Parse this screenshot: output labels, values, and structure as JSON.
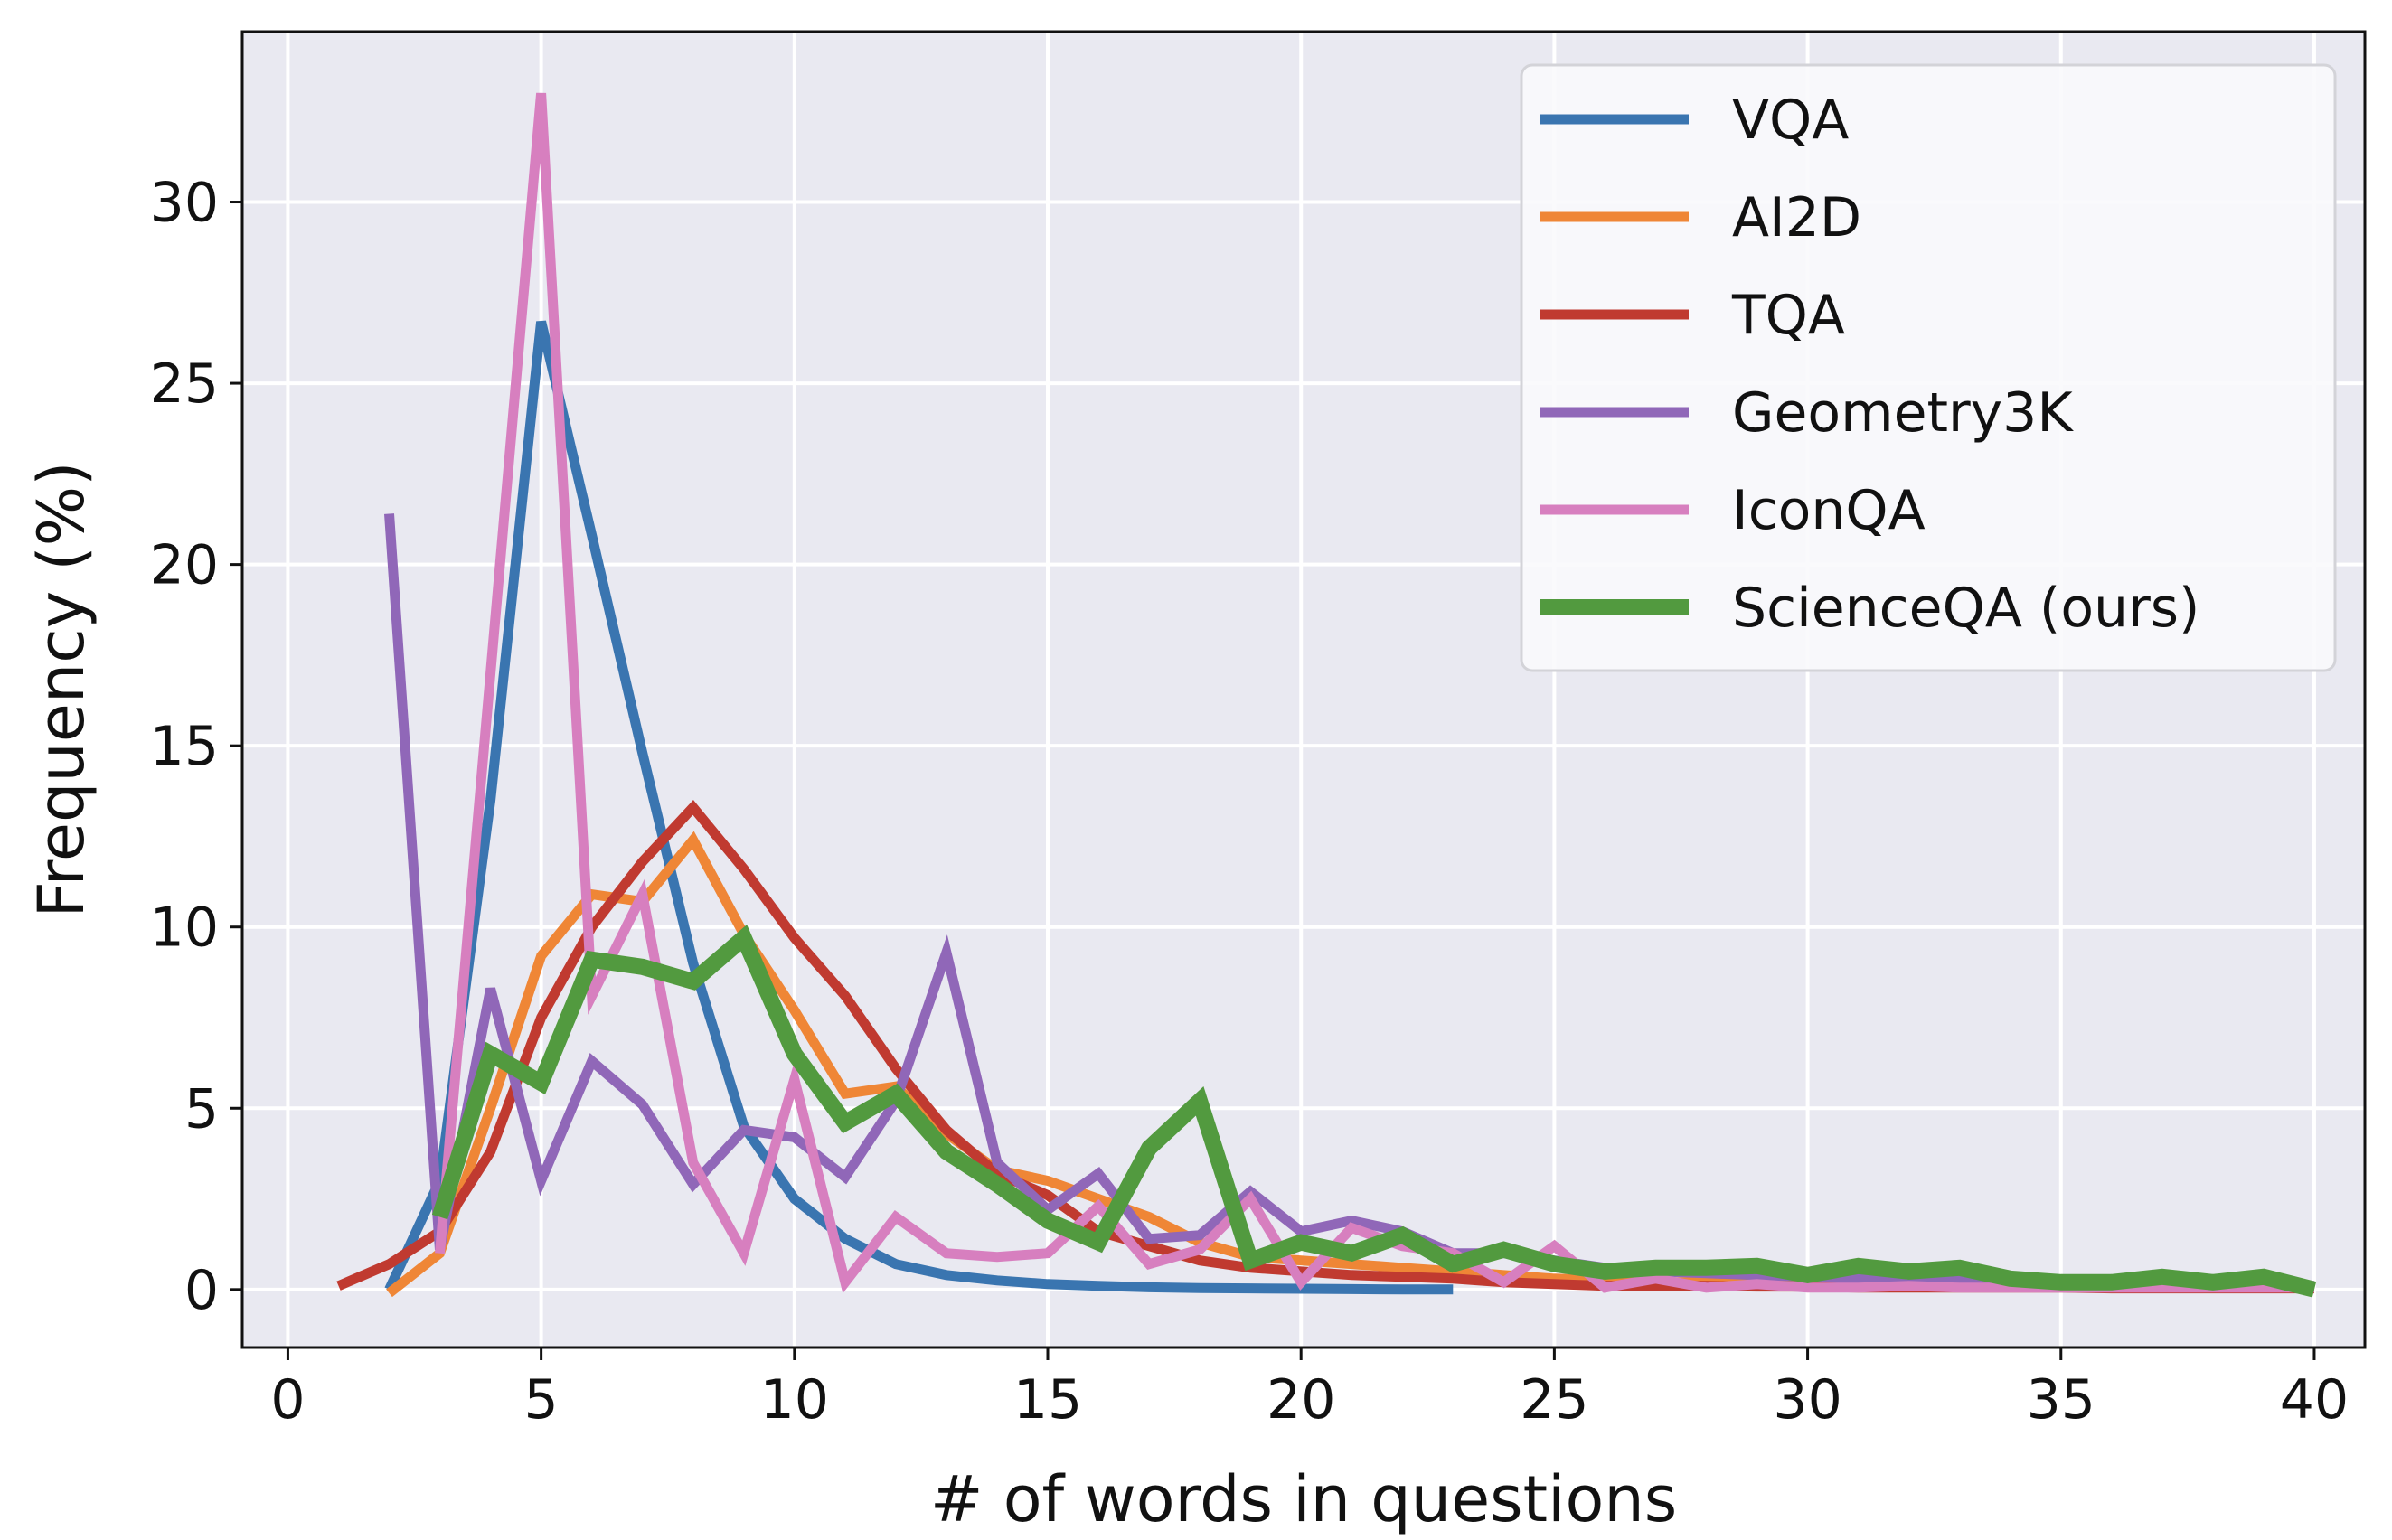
{
  "chart_data": {
    "type": "line",
    "title": "",
    "xlabel": "# of words in questions",
    "ylabel": "Frequency (%)",
    "xlim": [
      -0.9,
      41.0
    ],
    "ylim": [
      -1.6,
      34.7
    ],
    "xticks": [
      0,
      5,
      10,
      15,
      20,
      25,
      30,
      35,
      40
    ],
    "yticks": [
      0,
      5,
      10,
      15,
      20,
      25,
      30
    ],
    "grid": true,
    "legend_position": "top-right",
    "series": [
      {
        "name": "VQA",
        "color": "#3a75b0",
        "x": [
          2,
          3,
          4,
          5,
          6,
          7,
          8,
          9,
          10,
          11,
          12,
          13,
          14,
          15,
          16,
          17,
          18,
          19,
          20,
          21,
          22,
          23
        ],
        "y": [
          0.0,
          3.0,
          13.5,
          26.7,
          20.8,
          14.8,
          9.0,
          4.5,
          2.5,
          1.4,
          0.7,
          0.4,
          0.25,
          0.15,
          0.1,
          0.06,
          0.04,
          0.03,
          0.02,
          0.01,
          0.0,
          0.0
        ]
      },
      {
        "name": "AI2D",
        "color": "#ef8636",
        "x": [
          2,
          3,
          4,
          5,
          6,
          7,
          8,
          9,
          10,
          11,
          12,
          13,
          14,
          15,
          16,
          17,
          18,
          19,
          20,
          21,
          22,
          23,
          24,
          25,
          26,
          27,
          28,
          29,
          30,
          31,
          32,
          33,
          34,
          35,
          36,
          37,
          38,
          39,
          40
        ],
        "y": [
          -0.1,
          1.0,
          5.0,
          9.2,
          10.9,
          10.7,
          12.4,
          9.8,
          7.7,
          5.4,
          5.6,
          4.3,
          3.3,
          3.0,
          2.5,
          2.0,
          1.3,
          0.9,
          0.8,
          0.7,
          0.6,
          0.5,
          0.4,
          0.3,
          0.25,
          0.2,
          0.2,
          0.15,
          0.15,
          0.1,
          0.1,
          0.1,
          0.1,
          0.1,
          0.08,
          0.08,
          0.05,
          0.05,
          0.05
        ]
      },
      {
        "name": "TQA",
        "color": "#c03a30",
        "x": [
          1,
          2,
          3,
          4,
          5,
          6,
          7,
          8,
          9,
          10,
          11,
          12,
          13,
          14,
          15,
          16,
          17,
          18,
          19,
          20,
          21,
          22,
          23,
          24,
          25,
          26,
          27,
          28,
          29,
          30,
          31,
          32,
          33,
          34,
          35,
          36,
          37,
          38,
          39,
          40
        ],
        "y": [
          0.1,
          0.7,
          1.6,
          3.8,
          7.5,
          10.0,
          11.8,
          13.3,
          11.6,
          9.7,
          8.1,
          6.1,
          4.4,
          3.2,
          2.6,
          1.6,
          1.2,
          0.8,
          0.6,
          0.5,
          0.4,
          0.35,
          0.3,
          0.2,
          0.15,
          0.1,
          0.1,
          0.1,
          0.08,
          0.08,
          0.05,
          0.05,
          0.05,
          0.05,
          0.05,
          0.03,
          0.03,
          0.03,
          0.03,
          0.03
        ]
      },
      {
        "name": "Geometry3K",
        "color": "#9067b8",
        "x": [
          2,
          3,
          4,
          5,
          6,
          7,
          8,
          9,
          10,
          11,
          12,
          13,
          14,
          15,
          16,
          17,
          18,
          19,
          20,
          21,
          22,
          23,
          24,
          25,
          26,
          27,
          28,
          29,
          30,
          31,
          32,
          33,
          34,
          35,
          36,
          37,
          38,
          39,
          40
        ],
        "y": [
          21.4,
          1.1,
          8.3,
          3.0,
          6.3,
          5.1,
          2.9,
          4.4,
          4.2,
          3.1,
          5.2,
          9.3,
          3.5,
          2.2,
          3.2,
          1.4,
          1.5,
          2.7,
          1.6,
          1.9,
          1.6,
          1.0,
          1.0,
          0.8,
          0.6,
          0.5,
          0.45,
          0.4,
          0.35,
          0.3,
          0.3,
          0.3,
          0.2,
          0.2,
          0.2,
          0.15,
          0.1,
          0.1,
          0.1
        ]
      },
      {
        "name": "IconQA",
        "color": "#d77fbf",
        "x": [
          3,
          4,
          5,
          6,
          7,
          8,
          9,
          10,
          11,
          12,
          13,
          14,
          15,
          16,
          17,
          18,
          19,
          20,
          21,
          22,
          23,
          24,
          25,
          26,
          27,
          28,
          29,
          30,
          31,
          32,
          33,
          34,
          35,
          36,
          37,
          38,
          39,
          40
        ],
        "y": [
          1.0,
          17.0,
          33.0,
          8.1,
          10.9,
          3.5,
          1.0,
          5.8,
          0.2,
          2.0,
          1.0,
          0.9,
          1.0,
          2.3,
          0.7,
          1.1,
          2.5,
          0.2,
          1.7,
          1.2,
          1.0,
          0.2,
          1.2,
          0.05,
          0.3,
          0.05,
          0.15,
          0.05,
          0.05,
          0.1,
          0.05,
          0.05,
          0.05,
          0.05,
          0.05,
          0.05,
          0.05,
          0.05
        ]
      },
      {
        "name": "ScienceQA (ours)",
        "color": "#529a3f",
        "x": [
          3,
          4,
          5,
          6,
          7,
          8,
          9,
          10,
          11,
          12,
          13,
          14,
          15,
          16,
          17,
          18,
          19,
          20,
          21,
          22,
          23,
          24,
          25,
          26,
          27,
          28,
          29,
          30,
          31,
          32,
          33,
          34,
          35,
          36,
          37,
          38,
          39,
          40
        ],
        "y": [
          2.0,
          6.5,
          5.7,
          9.1,
          8.9,
          8.5,
          9.7,
          6.5,
          4.6,
          5.4,
          3.8,
          2.9,
          1.9,
          1.3,
          3.9,
          5.2,
          0.8,
          1.3,
          1.0,
          1.5,
          0.7,
          1.1,
          0.7,
          0.5,
          0.6,
          0.6,
          0.65,
          0.4,
          0.65,
          0.5,
          0.6,
          0.3,
          0.2,
          0.2,
          0.35,
          0.2,
          0.35,
          0.0
        ]
      }
    ]
  }
}
